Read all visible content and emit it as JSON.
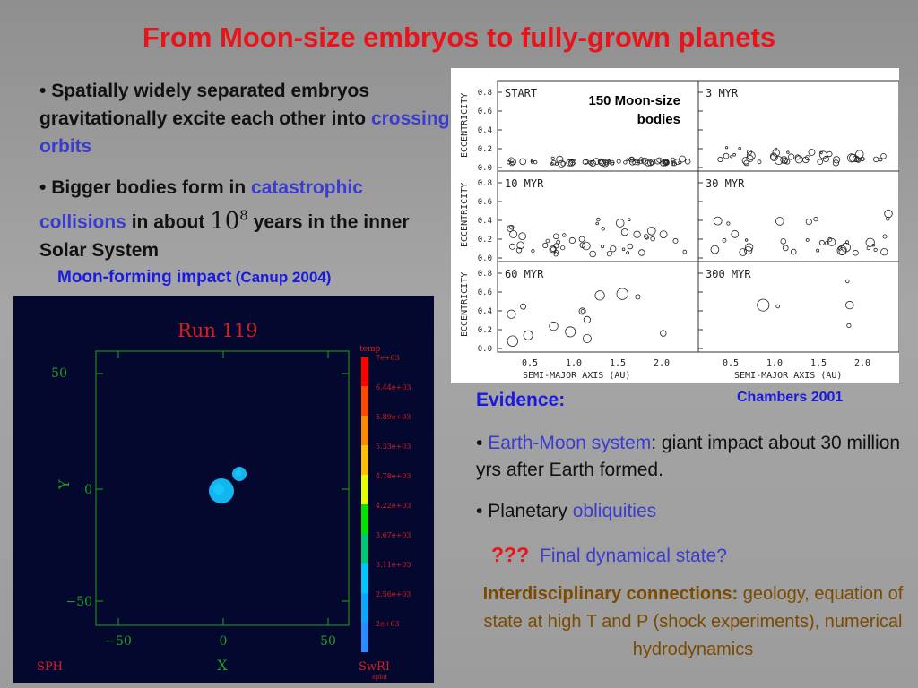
{
  "title": "From Moon-size embryos to fully-grown planets",
  "bullets_left": {
    "b1_part1": "Spatially widely separated embryos gravitationally excite each other into",
    "b1_highlight": "crossing orbits",
    "b2_part1": "Bigger bodies form in",
    "b2_highlight": "catastrophic collisions",
    "b2_part2": "in about",
    "b2_base": "10",
    "b2_exp": "8",
    "b2_part3": "years in the inner Solar System"
  },
  "moon_caption": {
    "main": "Moon-forming impact",
    "ref": "(Canup 2004)"
  },
  "chambers_chart": {
    "annotation": "150 Moon-size bodies",
    "credit": "Chambers 2001",
    "ylabel": "ECCENTRICITY",
    "xlabel": "SEMI-MAJOR AXIS (AU)",
    "yticks": [
      "0.0",
      "0.2",
      "0.4",
      "0.6",
      "0.8"
    ],
    "xticks": [
      "0.5",
      "1.0",
      "1.5",
      "2.0"
    ],
    "panels": [
      "START",
      "3 MYR",
      "10 MYR",
      "30 MYR",
      "60 MYR",
      "300 MYR"
    ]
  },
  "sph": {
    "run_label": "Run 119",
    "xlabel": "X",
    "ylabel": "Y",
    "xticks": [
      "−50",
      "0",
      "50"
    ],
    "yticks": [
      "50",
      "0",
      "−50"
    ],
    "legend_title": "temp",
    "legend_values": [
      "7e+03",
      "6.44e+03",
      "5.89e+03",
      "5.33e+03",
      "4.78e+03",
      "4.22e+03",
      "3.67e+03",
      "3.11e+03",
      "2.56e+03",
      "2e+03"
    ],
    "corner_left": "SPH",
    "corner_right": "SwRI",
    "corner_right_small": "splot",
    "colors": [
      "#ff0000",
      "#ff4800",
      "#ff8a00",
      "#ffc000",
      "#e6ff00",
      "#00e400",
      "#00c87a",
      "#00c8ff",
      "#0aa8ff",
      "#2a8cff"
    ]
  },
  "evidence": {
    "heading": "Evidence:",
    "item1_highlight": "Earth-Moon system",
    "item1_text": ":  giant impact about 30 million yrs after Earth formed.",
    "item2_text": "Planetary",
    "item2_highlight": "obliquities",
    "question_marks": "???",
    "question_text": "Final dynamical state?",
    "interdisc_bold": "Interdisciplinary connections:",
    "interdisc_text": " geology, equation of state at high T and P (shock experiments), numerical hydrodynamics"
  }
}
